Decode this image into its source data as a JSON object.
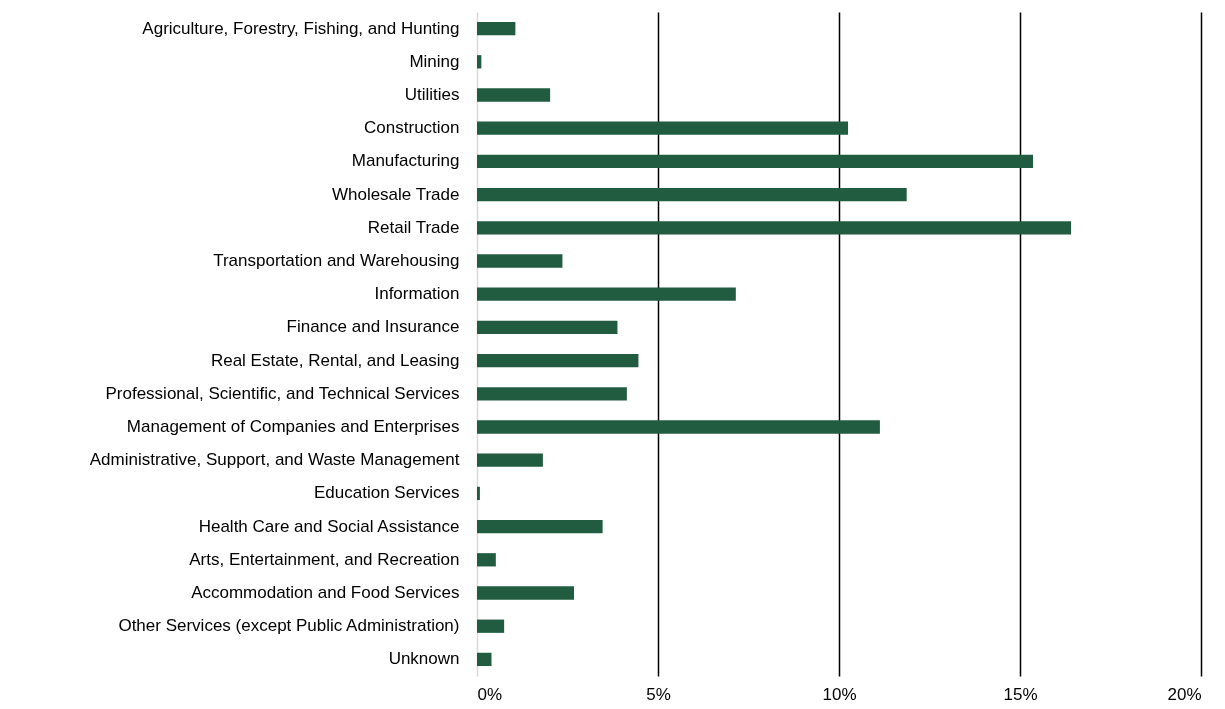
{
  "chart_data": {
    "type": "bar",
    "orientation": "horizontal",
    "categories": [
      "Agriculture, Forestry, Fishing, and Hunting",
      "Mining",
      "Utilities",
      "Construction",
      "Manufacturing",
      "Wholesale Trade",
      "Retail Trade",
      "Transportation and Warehousing",
      "Information",
      "Finance and Insurance",
      "Real Estate, Rental, and Leasing",
      "Professional, Scientific, and Technical Services",
      "Management of Companies and Enterprises",
      "Administrative, Support, and Waste Management",
      "Education Services",
      "Health Care and Social Assistance",
      "Arts, Entertainment, and Recreation",
      "Accommodation and Food Services",
      "Other Services (except Public Administration)",
      "Unknown"
    ],
    "values": [
      1.06,
      0.12,
      2.02,
      10.25,
      15.36,
      11.87,
      16.41,
      2.36,
      7.15,
      3.88,
      4.46,
      4.14,
      11.13,
      1.82,
      0.08,
      3.47,
      0.52,
      2.68,
      0.75,
      0.4
    ],
    "color": "#215c40",
    "xlim": [
      0,
      20
    ],
    "xticks": [
      {
        "value": 0,
        "label": "0%"
      },
      {
        "value": 5,
        "label": "5%"
      },
      {
        "value": 10,
        "label": "10%"
      },
      {
        "value": 15,
        "label": "15%"
      },
      {
        "value": 20,
        "label": "20%"
      }
    ],
    "grid": "x"
  }
}
